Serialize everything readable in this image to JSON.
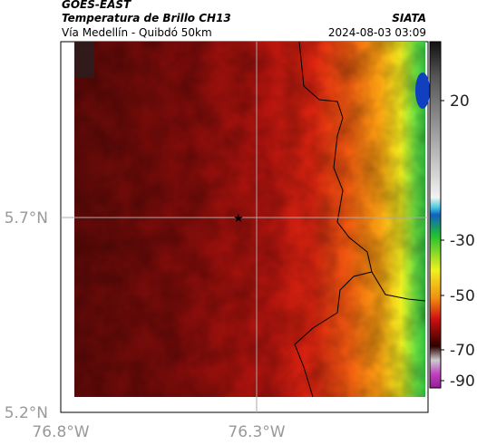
{
  "header": {
    "title": "GOES-EAST",
    "subtitle": "Temperatura de Brillo CH13",
    "route": "Vía Medellín - Quibdó 50km",
    "source": "SIATA",
    "datetime": "2024-08-03 03:09"
  },
  "map": {
    "lat_labels": [
      "5.7°N",
      "5.2°N"
    ],
    "lon_labels": [
      "76.8°W",
      "76.3°W"
    ]
  },
  "colorbar": {
    "ticks": [
      20,
      -30,
      -50,
      -70,
      -90
    ]
  }
}
